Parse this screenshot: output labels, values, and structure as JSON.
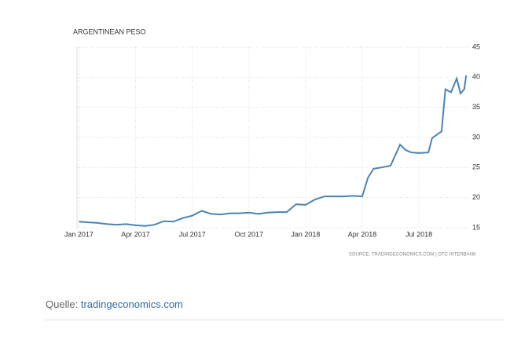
{
  "chart_data": {
    "type": "line",
    "title": "ARGENTINEAN PESO",
    "source": "SOURCE: TRADINGECONOMICS.COM | OTC INTERBANK",
    "x": [
      0,
      0.5,
      1,
      1.5,
      2,
      2.5,
      3,
      3.5,
      4,
      4.5,
      5,
      5.5,
      6,
      6.5,
      7,
      7.5,
      8,
      8.5,
      9,
      9.5,
      10,
      10.5,
      11,
      11.5,
      12,
      12.5,
      13,
      13.5,
      14,
      14.5,
      15,
      15.3,
      15.6,
      16,
      16.5,
      17,
      17.3,
      17.6,
      18,
      18.5,
      18.7,
      19.2,
      19.4,
      19.7,
      20,
      20.2,
      20.4,
      20.5
    ],
    "series": [
      {
        "name": "ARGENTINEAN PESO",
        "color": "#4a84b4",
        "values": [
          16.0,
          15.9,
          15.8,
          15.6,
          15.5,
          15.6,
          15.4,
          15.3,
          15.5,
          16.1,
          16.0,
          16.6,
          17.0,
          17.8,
          17.3,
          17.2,
          17.4,
          17.4,
          17.5,
          17.3,
          17.5,
          17.6,
          17.6,
          18.9,
          18.8,
          19.7,
          20.2,
          20.2,
          20.2,
          20.3,
          20.2,
          23.3,
          24.8,
          25.0,
          25.3,
          28.8,
          27.9,
          27.5,
          27.4,
          27.5,
          29.9,
          31.0,
          38.0,
          37.5,
          39.8,
          37.3,
          38.0,
          40.3
        ]
      }
    ],
    "xlim": [
      -0.1,
      20.7
    ],
    "xticks": [
      {
        "value": 0,
        "label": "Jan 2017"
      },
      {
        "value": 3,
        "label": "Apr 2017"
      },
      {
        "value": 6,
        "label": "Jul 2017"
      },
      {
        "value": 9,
        "label": "Oct 2017"
      },
      {
        "value": 12,
        "label": "Jan 2018"
      },
      {
        "value": 15,
        "label": "Apr 2018"
      },
      {
        "value": 18,
        "label": "Jul 2018"
      }
    ],
    "ylim": [
      15,
      45
    ],
    "yticks": [
      15,
      20,
      25,
      30,
      35,
      40,
      45
    ],
    "grid": true
  },
  "footer": {
    "prefix": "Quelle:",
    "link": "tradingeconomics.com"
  }
}
